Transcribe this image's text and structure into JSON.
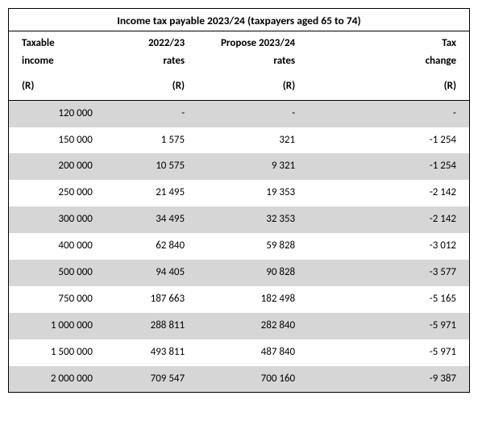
{
  "title": "Income tax payable 2023/24 (taxpayers aged 65 to 74)",
  "headers": {
    "income_l1": "Taxable",
    "income_l2": "income",
    "prev_l1": "2022/23",
    "prev_l2": "rates",
    "prop_l1": "Propose 2023/24",
    "prop_l2": "rates",
    "chg_l1": "Tax",
    "chg_l2": "change",
    "unit": "(R)"
  },
  "rows": [
    {
      "income": "120 000",
      "prev": "-",
      "prop": "-",
      "chg": "-"
    },
    {
      "income": "150 000",
      "prev": "1 575",
      "prop": "321",
      "chg": "-1 254"
    },
    {
      "income": "200 000",
      "prev": "10 575",
      "prop": "9 321",
      "chg": "-1 254"
    },
    {
      "income": "250 000",
      "prev": "21 495",
      "prop": "19 353",
      "chg": "-2 142"
    },
    {
      "income": "300 000",
      "prev": "34 495",
      "prop": "32 353",
      "chg": "-2 142"
    },
    {
      "income": "400 000",
      "prev": "62 840",
      "prop": "59 828",
      "chg": "-3 012"
    },
    {
      "income": "500 000",
      "prev": "94 405",
      "prop": "90 828",
      "chg": "-3 577"
    },
    {
      "income": "750 000",
      "prev": "187 663",
      "prop": "182 498",
      "chg": "-5 165"
    },
    {
      "income": "1 000 000",
      "prev": "288 811",
      "prop": "282 840",
      "chg": "-5 971"
    },
    {
      "income": "1 500 000",
      "prev": "493 811",
      "prop": "487 840",
      "chg": "-5 971"
    },
    {
      "income": "2 000 000",
      "prev": "709 547",
      "prop": "700 160",
      "chg": "-9 387"
    }
  ]
}
